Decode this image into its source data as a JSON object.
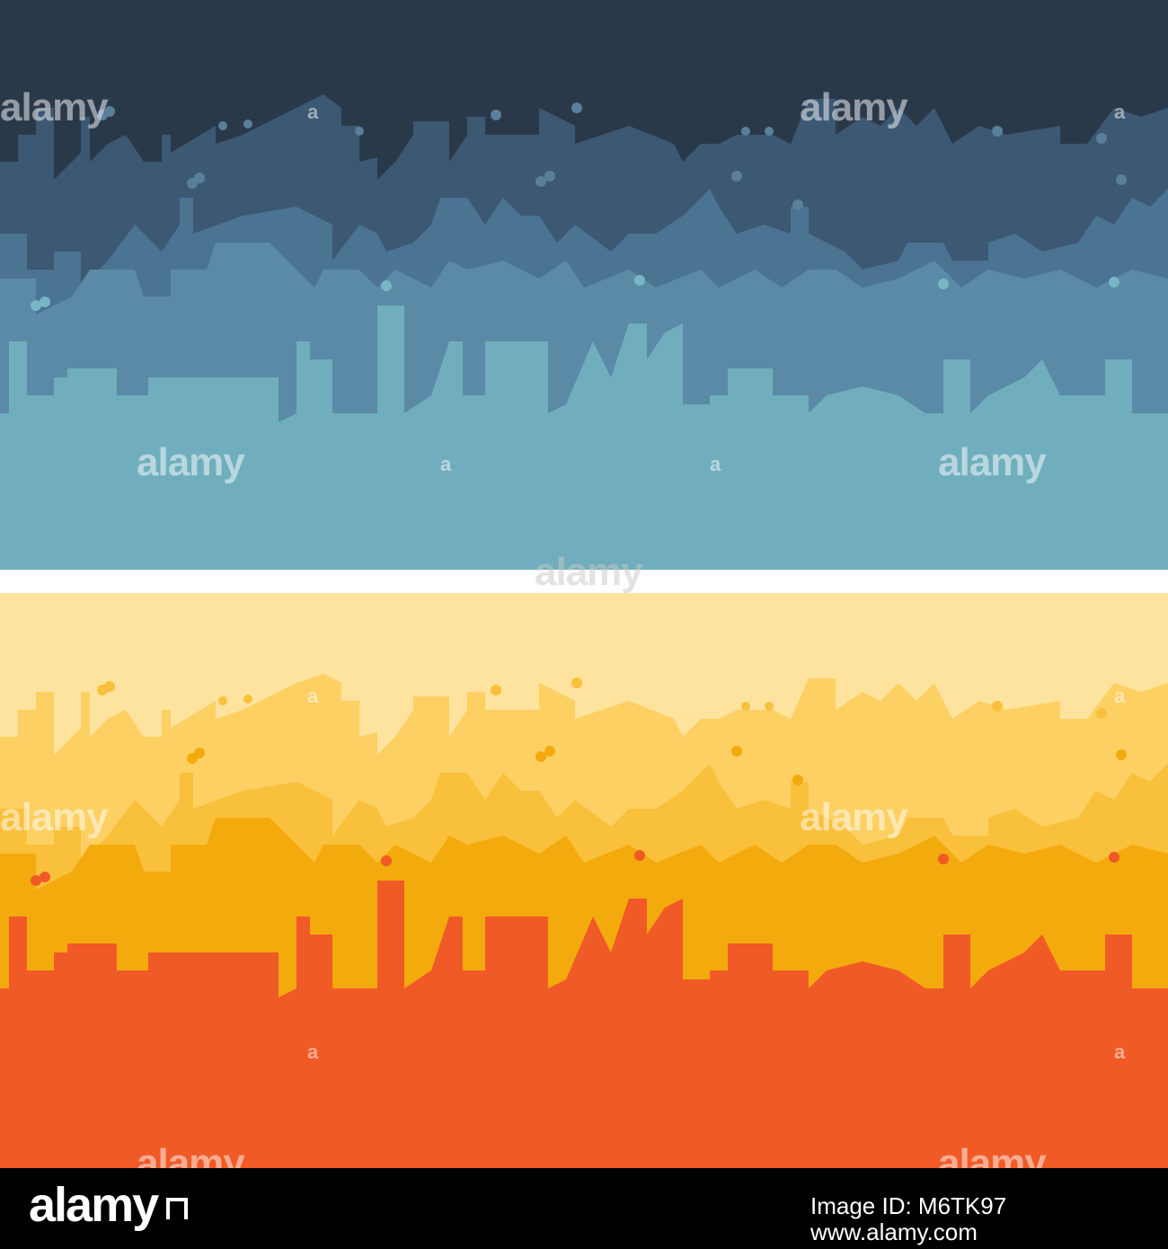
{
  "watermark": "alamy",
  "watermark_small": "a",
  "colors": {
    "top_sky": "#2a394a",
    "top_far": "#3c5872",
    "top_mid": "#4b7392",
    "top_front": "#70aebd",
    "bottom_sky": "#fde39e",
    "bottom_far": "#fdd063",
    "bottom_mid": "#f3aa0d",
    "bottom_front": "#f05a27",
    "footer": "#000000"
  },
  "footer": {
    "brand": "alamy",
    "image_id_label": "Image ID: M6TK97",
    "url": "www.alamy.com"
  }
}
